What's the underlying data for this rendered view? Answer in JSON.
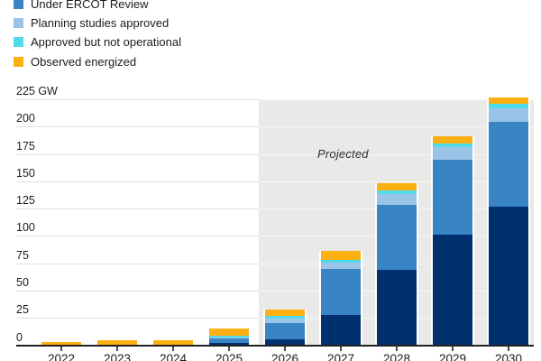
{
  "legend": {
    "items": [
      {
        "label": "Under ERCOT Review",
        "color": "#3884c4"
      },
      {
        "label": "Planning studies approved",
        "color": "#9ac4e7"
      },
      {
        "label": "Approved but not operational",
        "color": "#4fdbe9"
      },
      {
        "label": "Observed energized",
        "color": "#fcb011"
      }
    ]
  },
  "annotation": {
    "projected_label": "Projected"
  },
  "y_axis": {
    "unit_label": "225 GW",
    "ticks": [
      0,
      25,
      50,
      75,
      100,
      125,
      150,
      175,
      200,
      225
    ]
  },
  "chart_data": {
    "type": "bar",
    "stacked": true,
    "unit": "GW",
    "categories": [
      "2022",
      "2023",
      "2024",
      "2025",
      "2026",
      "2027",
      "2028",
      "2029",
      "2030"
    ],
    "series": [
      {
        "id": "base-segment-legend-cropped",
        "label": "",
        "color": "#00306e",
        "values": [
          0,
          0,
          0,
          2,
          5.5,
          28,
          69,
          101,
          127
        ]
      },
      {
        "id": "under-ercot-review",
        "label": "Under ERCOT Review",
        "color": "#3884c4",
        "values": [
          0,
          0,
          0,
          4,
          14.5,
          41.5,
          59,
          69,
          77
        ]
      },
      {
        "id": "planning-studies-approved",
        "label": "Planning studies approved",
        "color": "#9ac4e7",
        "values": [
          0,
          0,
          0,
          1,
          4,
          6,
          10,
          11,
          13
        ]
      },
      {
        "id": "approved-but-not-operational",
        "label": "Approved but not operational",
        "color": "#4fdbe9",
        "values": [
          0,
          0,
          0,
          1.5,
          3,
          2.5,
          3.5,
          3.5,
          3.5
        ]
      },
      {
        "id": "observed-energized",
        "label": "Observed energized",
        "color": "#fcb011",
        "values": [
          3,
          4.5,
          4.5,
          7,
          5.5,
          8,
          7,
          7,
          6.5
        ]
      }
    ],
    "ylim": [
      0,
      225
    ],
    "ylabel": "GW",
    "grid": "horizontal",
    "legend_position": "top-left",
    "projected_region": {
      "from_category": "2026",
      "to_category": "2030",
      "label": "Projected"
    }
  },
  "colors": {
    "projected_band": "#e9e9e7",
    "gridline_on_white": "#e0e0e0",
    "gridline_on_band": "#f6f6f4",
    "axis_line": "#222222",
    "text": "#1c1c1c"
  }
}
